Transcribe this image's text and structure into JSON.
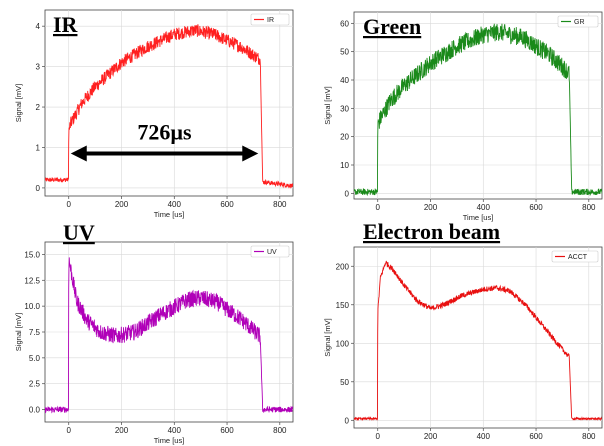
{
  "chart_data": [
    {
      "type": "line",
      "title": "IR",
      "xlabel": "Time [us]",
      "ylabel": "Signal [mV]",
      "xlim": [
        -90,
        850
      ],
      "ylim": [
        -0.2,
        4.4
      ],
      "xticks": [
        0,
        200,
        400,
        600,
        800
      ],
      "yticks": [
        0,
        1,
        2,
        3,
        4
      ],
      "grid": true,
      "legend": "top-right",
      "color": "#ff2020",
      "noise": 0.16,
      "series": [
        {
          "name": "IR",
          "x": [
            -90,
            -1,
            0,
            8,
            50,
            100,
            200,
            300,
            400,
            480,
            550,
            650,
            720,
            726,
            735,
            850
          ],
          "y": [
            0.2,
            0.2,
            1.4,
            1.6,
            2.1,
            2.5,
            3.1,
            3.5,
            3.8,
            3.9,
            3.8,
            3.5,
            3.2,
            3.2,
            0.15,
            0.05
          ]
        }
      ],
      "annotations": [
        {
          "text": "726µs",
          "x_start": 0,
          "x_end": 726,
          "y": 0.85
        }
      ]
    },
    {
      "type": "line",
      "title": "Green",
      "xlabel": "Time [us]",
      "ylabel": "Signal [mV]",
      "xlim": [
        -90,
        850
      ],
      "ylim": [
        -2,
        64
      ],
      "xticks": [
        0,
        200,
        400,
        600,
        800
      ],
      "yticks": [
        0,
        10,
        20,
        30,
        40,
        50,
        60
      ],
      "grid": true,
      "legend": "top-right",
      "color": "#1a8a1a",
      "noise": 3.2,
      "series": [
        {
          "name": "GR",
          "x": [
            -90,
            -1,
            0,
            8,
            50,
            100,
            200,
            300,
            400,
            460,
            550,
            650,
            720,
            726,
            735,
            850
          ],
          "y": [
            0.5,
            0.5,
            24,
            26,
            33,
            38,
            46,
            52,
            56,
            57,
            55,
            49,
            43,
            42,
            0.5,
            0.5
          ]
        }
      ]
    },
    {
      "type": "line",
      "title": "UV",
      "xlabel": "Time [us]",
      "ylabel": "Signal [mV]",
      "xlim": [
        -90,
        850
      ],
      "ylim": [
        -1.2,
        16.2
      ],
      "xticks": [
        0,
        200,
        400,
        600,
        800
      ],
      "yticks": [
        0.0,
        2.5,
        5.0,
        7.5,
        10.0,
        12.5,
        15.0
      ],
      "grid": true,
      "legend": "top-right",
      "color": "#b000b8",
      "noise": 0.8,
      "series": [
        {
          "name": "UV",
          "x": [
            -90,
            -1,
            0,
            8,
            30,
            70,
            120,
            180,
            250,
            350,
            450,
            500,
            560,
            650,
            720,
            726,
            735,
            850
          ],
          "y": [
            0.0,
            0.0,
            14.6,
            13.5,
            10.5,
            8.6,
            7.5,
            7.1,
            7.5,
            9.2,
            10.6,
            10.8,
            10.4,
            8.8,
            7.2,
            7.0,
            0.0,
            0.0
          ]
        }
      ]
    },
    {
      "type": "line",
      "title": "Electron beam",
      "xlabel": "",
      "ylabel": "Signal [mV]",
      "xlim": [
        -90,
        850
      ],
      "ylim": [
        -10,
        225
      ],
      "xticks": [
        0,
        200,
        400,
        600,
        800
      ],
      "yticks": [
        0,
        50,
        100,
        150,
        200
      ],
      "grid": true,
      "legend": "top-right",
      "color": "#e81010",
      "noise": 3.5,
      "series": [
        {
          "name": "ACCT",
          "x": [
            -90,
            -1,
            0,
            10,
            30,
            60,
            100,
            150,
            200,
            250,
            320,
            400,
            450,
            500,
            560,
            620,
            680,
            726,
            735,
            850
          ],
          "y": [
            2,
            2,
            140,
            185,
            205,
            195,
            175,
            155,
            145,
            150,
            162,
            170,
            172,
            168,
            150,
            125,
            100,
            82,
            2,
            2
          ]
        }
      ]
    }
  ]
}
